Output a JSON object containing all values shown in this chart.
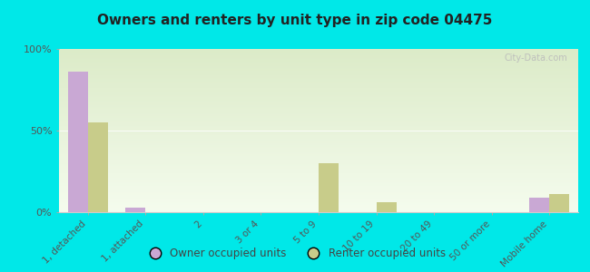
{
  "title": "Owners and renters by unit type in zip code 04475",
  "categories": [
    "1, detached",
    "1, attached",
    "2",
    "3 or 4",
    "5 to 9",
    "10 to 19",
    "20 to 49",
    "50 or more",
    "Mobile home"
  ],
  "owner_values": [
    86,
    3,
    0,
    0,
    0,
    0,
    0,
    0,
    9
  ],
  "renter_values": [
    55,
    0,
    0,
    0,
    30,
    6,
    0,
    0,
    11
  ],
  "owner_color": "#c9a8d4",
  "renter_color": "#c8cc8a",
  "background_color": "#00e8e8",
  "ylim": [
    0,
    100
  ],
  "yticks": [
    0,
    50,
    100
  ],
  "ytick_labels": [
    "0%",
    "50%",
    "100%"
  ],
  "bar_width": 0.35,
  "legend_owner": "Owner occupied units",
  "legend_renter": "Renter occupied units",
  "watermark": "City-Data.com"
}
